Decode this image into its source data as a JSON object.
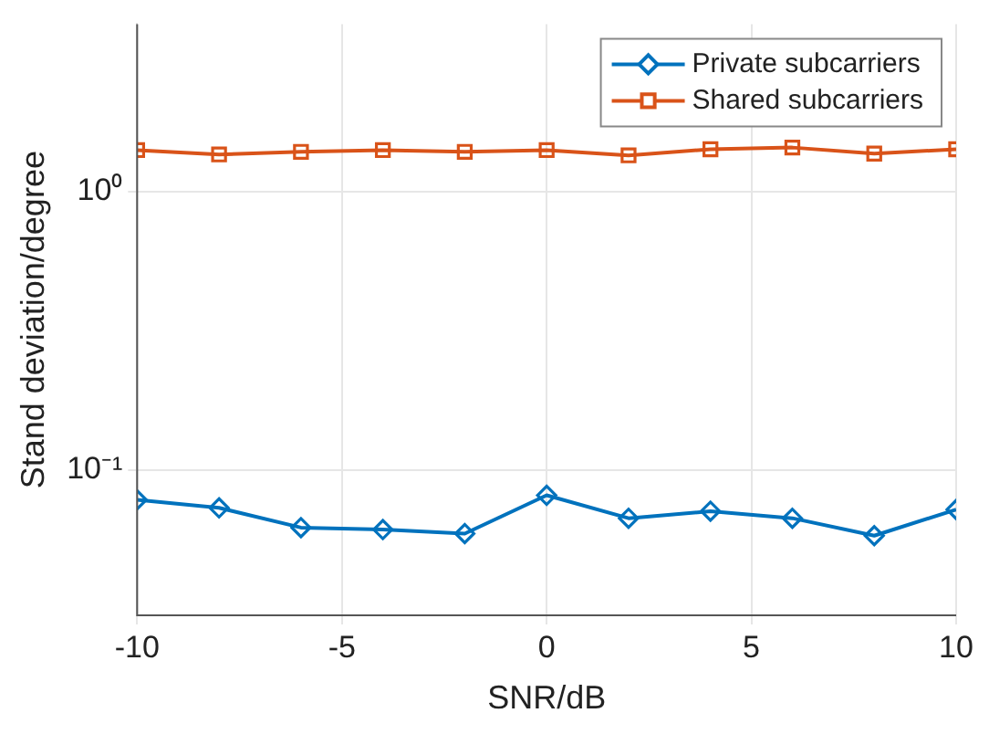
{
  "chart_data": {
    "type": "line",
    "xlabel": "SNR/dB",
    "ylabel": "Stand deviation/degree",
    "x": [
      -10,
      -8,
      -6,
      -4,
      -2,
      0,
      2,
      4,
      6,
      8,
      10
    ],
    "series": [
      {
        "name": "Private subcarriers",
        "color": "#0072bd",
        "marker": "diamond",
        "values": [
          0.078,
          0.073,
          0.062,
          0.061,
          0.059,
          0.081,
          0.067,
          0.071,
          0.067,
          0.058,
          0.072
        ]
      },
      {
        "name": "Shared subcarriers",
        "color": "#d95319",
        "marker": "square",
        "values": [
          1.41,
          1.36,
          1.39,
          1.41,
          1.39,
          1.41,
          1.35,
          1.42,
          1.44,
          1.37,
          1.42
        ]
      }
    ],
    "xlim": [
      -10,
      10
    ],
    "xticks": [
      -10,
      -5,
      0,
      5,
      10
    ],
    "ylim": [
      0.03,
      4
    ],
    "yticks": [
      {
        "value": 0.1,
        "label": "10⁻¹"
      },
      {
        "value": 1,
        "label": "10⁰"
      }
    ],
    "log": "y",
    "grid": true,
    "legend": "top right",
    "line_style": "solid"
  }
}
